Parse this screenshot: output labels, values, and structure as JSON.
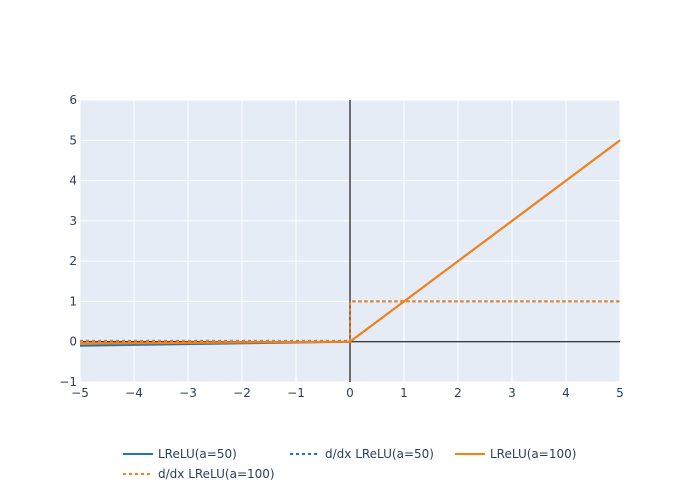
{
  "chart_data": {
    "type": "line",
    "xlim": [
      -5,
      5
    ],
    "ylim": [
      -1,
      6
    ],
    "x_ticks": [
      -5,
      -4,
      -3,
      -2,
      -1,
      0,
      1,
      2,
      3,
      4,
      5
    ],
    "y_ticks": [
      -1,
      0,
      1,
      2,
      3,
      4,
      5,
      6
    ],
    "x_tick_labels": [
      "−5",
      "−4",
      "−3",
      "−2",
      "−1",
      "0",
      "1",
      "2",
      "3",
      "4",
      "5"
    ],
    "y_tick_labels": [
      "−1",
      "0",
      "1",
      "2",
      "3",
      "4",
      "5",
      "6"
    ],
    "grid": true,
    "legend_position": "bottom",
    "plot_background": "#e5ecf6",
    "series": [
      {
        "name": "LReLU(a=50)",
        "color": "#1f77b4",
        "dash": "solid",
        "x": [
          -5,
          0,
          5
        ],
        "y": [
          -0.1,
          0,
          5
        ]
      },
      {
        "name": "d/dx LReLU(a=50)",
        "color": "#1f77b4",
        "dash": "dot",
        "x": [
          -5,
          0,
          0,
          5
        ],
        "y": [
          0.02,
          0.02,
          1,
          1
        ]
      },
      {
        "name": "LReLU(a=100)",
        "color": "#ff7f0e",
        "dash": "solid",
        "x": [
          -5,
          0,
          5
        ],
        "y": [
          -0.05,
          0,
          5
        ]
      },
      {
        "name": "d/dx LReLU(a=100)",
        "color": "#ff7f0e",
        "dash": "dot",
        "x": [
          -5,
          0,
          0,
          5
        ],
        "y": [
          0.01,
          0.01,
          1,
          1
        ]
      }
    ]
  }
}
